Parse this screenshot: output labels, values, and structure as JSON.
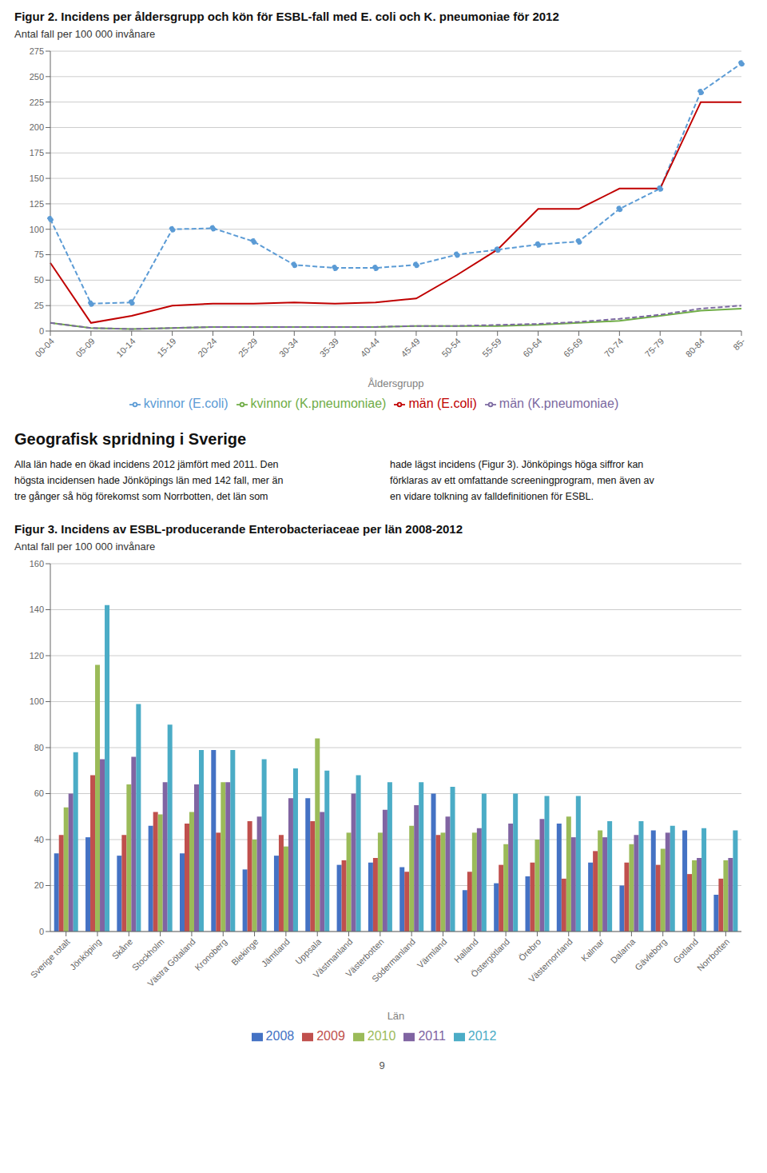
{
  "chart_data": [
    {
      "type": "line",
      "title": "Figur 2. Incidens per åldersgrupp och kön för ESBL-fall med E. coli och K. pneumoniae för 2012",
      "subtitle": "Antal fall per 100 000 invånare",
      "x_label": "Åldersgrupp",
      "categories": [
        "00-04",
        "05-09",
        "10-14",
        "15-19",
        "20-24",
        "25-29",
        "30-34",
        "35-39",
        "40-44",
        "45-49",
        "50-54",
        "55-59",
        "60-64",
        "65-69",
        "70-74",
        "75-79",
        "80-84",
        "85-"
      ],
      "series": [
        {
          "name": "kvinnor (E.coli)",
          "color": "#5B9BD5",
          "line_style": "dashed",
          "marker": "circle",
          "values": [
            110,
            27,
            28,
            100,
            101,
            88,
            65,
            62,
            62,
            65,
            75,
            80,
            85,
            88,
            120,
            140,
            235,
            263
          ]
        },
        {
          "name": "män (E.coli)",
          "color": "#C00000",
          "line_style": "solid",
          "marker": "none",
          "values": [
            67,
            8,
            15,
            25,
            27,
            27,
            28,
            27,
            28,
            32,
            55,
            80,
            120,
            120,
            140,
            140,
            225,
            225
          ]
        },
        {
          "name": "kvinnor (K.pneumoniae)",
          "color": "#70AD47",
          "line_style": "solid",
          "marker": "none",
          "values": [
            8,
            3,
            2,
            3,
            4,
            4,
            4,
            4,
            4,
            5,
            5,
            5,
            6,
            8,
            10,
            15,
            20,
            22
          ]
        },
        {
          "name": "män (K.pneumoniae)",
          "color": "#7B68A0",
          "line_style": "dashed",
          "marker": "none",
          "values": [
            8,
            3,
            2,
            3,
            4,
            4,
            4,
            4,
            4,
            5,
            5,
            6,
            7,
            9,
            12,
            16,
            22,
            25
          ]
        }
      ],
      "ylim": [
        0,
        275
      ],
      "yticks": [
        0,
        25,
        50,
        75,
        100,
        125,
        150,
        175,
        200,
        225,
        250,
        275
      ],
      "grid": true,
      "legend": "bottom",
      "annotations": [
        "Geografisk spridning i Sverige",
        "Alla län hade en ökad incidens 2012 jämfört med 2011. Den",
        "högsta incidensen hade Jönköpings län med 142 fall, mer än",
        "tre gånger så hög förekomst som Norrbotten, det län som",
        "hade lägst incidens (Figur 3). Jönköpings höga siffror kan",
        "förklaras av ett omfattande screeningprogram, men även av",
        "en vidare tolkning av falldefinitionen för ESBL."
      ]
    },
    {
      "type": "bar",
      "title": "Figur 3. Incidens av ESBL-producerande Enterobacteriaceae per län 2008-2012",
      "subtitle": "Antal fall per 100 000 invånare",
      "x_label": "Län",
      "categories": [
        "Sverige totalt",
        "Jönköping",
        "Skåne",
        "Stockholm",
        "Västra Götaland",
        "Kronoberg",
        "Blekinge",
        "Jämtland",
        "Uppsala",
        "Västmanland",
        "Västerbotten",
        "Södermanland",
        "Värmland",
        "Halland",
        "Östergötland",
        "Örebro",
        "Västernorrland",
        "Kalmar",
        "Dalarna",
        "Gävleborg",
        "Gotland",
        "Norrbotten"
      ],
      "series": [
        {
          "name": "2008",
          "color": "#4472C4",
          "values": [
            34,
            41,
            33,
            46,
            34,
            79,
            27,
            33,
            58,
            29,
            30,
            28,
            60,
            18,
            21,
            24,
            47,
            30,
            20,
            44,
            44,
            16
          ]
        },
        {
          "name": "2009",
          "color": "#C0504D",
          "values": [
            42,
            68,
            42,
            52,
            47,
            43,
            48,
            42,
            48,
            31,
            32,
            26,
            42,
            26,
            29,
            30,
            23,
            35,
            30,
            29,
            25,
            23
          ]
        },
        {
          "name": "2010",
          "color": "#9BBB59",
          "values": [
            54,
            116,
            64,
            51,
            52,
            65,
            40,
            37,
            84,
            43,
            43,
            46,
            43,
            43,
            38,
            40,
            50,
            44,
            38,
            36,
            31,
            31
          ]
        },
        {
          "name": "2011",
          "color": "#8064A2",
          "values": [
            60,
            75,
            76,
            65,
            64,
            65,
            50,
            58,
            52,
            60,
            53,
            55,
            50,
            45,
            47,
            49,
            41,
            41,
            42,
            43,
            32,
            32
          ]
        },
        {
          "name": "2012",
          "color": "#4BACC6",
          "values": [
            78,
            142,
            99,
            90,
            79,
            79,
            75,
            71,
            70,
            68,
            65,
            65,
            63,
            60,
            60,
            59,
            59,
            48,
            48,
            46,
            45,
            44
          ]
        }
      ],
      "ylim": [
        0,
        160
      ],
      "yticks": [
        0,
        20,
        40,
        60,
        80,
        100,
        120,
        140,
        160
      ],
      "grid": true,
      "legend": "bottom",
      "annotations": [
        "9"
      ]
    }
  ]
}
